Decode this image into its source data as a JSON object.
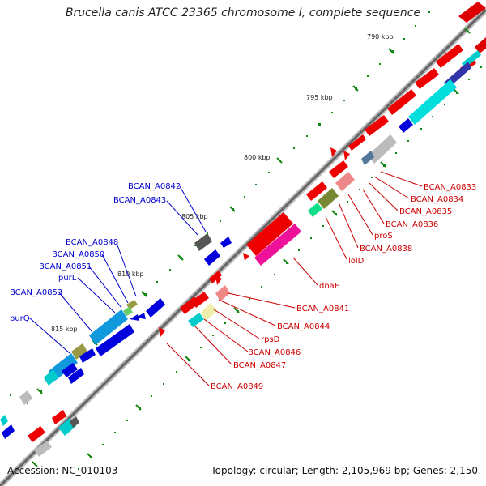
{
  "title": "Brucella canis ATCC 23365 chromosome I, complete sequence",
  "footer": {
    "accession": "Accession: NC_010103",
    "summary": "Topology: circular; Length: 2,105,969 bp; Genes: 2,150"
  },
  "colors": {
    "forward": "#ee0000",
    "reverse": "#0000dd",
    "backbone": "#777777",
    "tick": "#117711",
    "label_forward": "#cc0000",
    "label_reverse": "#0000cc"
  },
  "kbp_marks": [
    {
      "text": "790 kbp"
    },
    {
      "text": "795 kbp"
    },
    {
      "text": "800 kbp"
    },
    {
      "text": "805 kbp"
    },
    {
      "text": "810 kbp"
    },
    {
      "text": "815 kbp"
    }
  ],
  "forward_labels": [
    {
      "text": "BCAN_A0833"
    },
    {
      "text": "BCAN_A0834"
    },
    {
      "text": "BCAN_A0835"
    },
    {
      "text": "BCAN_A0836"
    },
    {
      "text": "proS"
    },
    {
      "text": "BCAN_A0838"
    },
    {
      "text": "lolD"
    },
    {
      "text": "dnaE"
    },
    {
      "text": "BCAN_A0841"
    },
    {
      "text": "BCAN_A0844"
    },
    {
      "text": "rpsD"
    },
    {
      "text": "BCAN_A0846"
    },
    {
      "text": "BCAN_A0847"
    },
    {
      "text": "BCAN_A0849"
    }
  ],
  "reverse_labels": [
    {
      "text": "BCAN_A0842"
    },
    {
      "text": "BCAN_A0843"
    },
    {
      "text": "BCAN_A0848"
    },
    {
      "text": "BCAN_A0850"
    },
    {
      "text": "BCAN_A0851"
    },
    {
      "text": "purL"
    },
    {
      "text": "BCAN_A0853"
    },
    {
      "text": "purQ"
    }
  ]
}
